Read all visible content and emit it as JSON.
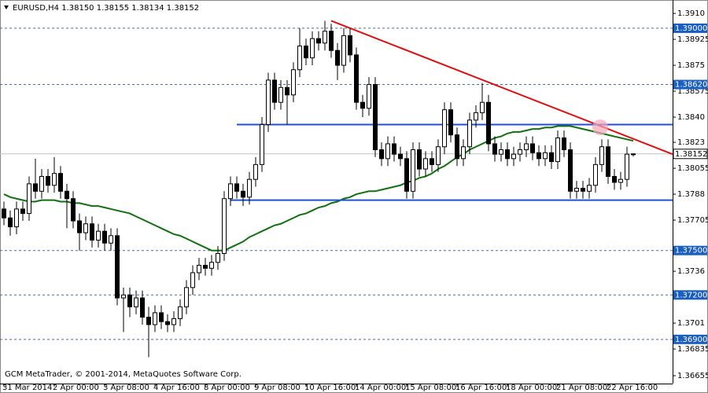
{
  "chart_data": {
    "type": "candlestick",
    "title": "EURUSD,H4  1.38150 1.38155 1.38134 1.38152",
    "footer": "GCM MetaTrader, © 2001-2014, MetaQuotes Software Corp.",
    "up_color": "#ffffff",
    "down_color": "#000000",
    "open": [
      1.3778,
      1.3772,
      1.3766,
      1.3778,
      1.3775,
      1.3795,
      1.379,
      1.38,
      1.3794,
      1.3802,
      1.379,
      1.3785,
      1.377,
      1.3762,
      1.3768,
      1.3757,
      1.3763,
      1.3755,
      1.376,
      1.3718,
      1.372,
      1.3712,
      1.3718,
      1.3705,
      1.37,
      1.3708,
      1.3702,
      1.37,
      1.3704,
      1.3712,
      1.3725,
      1.3735,
      1.374,
      1.3738,
      1.3742,
      1.3748,
      1.3785,
      1.3795,
      1.379,
      1.3786,
      1.3798,
      1.3808,
      1.3835,
      1.3865,
      1.385,
      1.386,
      1.3855,
      1.3872,
      1.3888,
      1.388,
      1.3893,
      1.389,
      1.3898,
      1.3885,
      1.3875,
      1.3895,
      1.3882,
      1.385,
      1.3846,
      1.3862,
      1.3818,
      1.3812,
      1.3822,
      1.3815,
      1.3812,
      1.379,
      1.3818,
      1.3805,
      1.3812,
      1.3808,
      1.382,
      1.3845,
      1.3828,
      1.3812,
      1.382,
      1.3838,
      1.3843,
      1.385,
      1.3822,
      1.3815,
      1.3818,
      1.3812,
      1.3815,
      1.3818,
      1.3822,
      1.3816,
      1.3812,
      1.3816,
      1.381,
      1.3826,
      1.3818,
      1.379,
      1.3792,
      1.379,
      1.3794,
      1.3808,
      1.382,
      1.38,
      1.3796,
      1.3798,
      1.3815
    ],
    "high": [
      1.3783,
      1.3777,
      1.3783,
      1.3783,
      1.38,
      1.3812,
      1.3805,
      1.3805,
      1.3813,
      1.3807,
      1.3795,
      1.379,
      1.3775,
      1.3773,
      1.3773,
      1.3768,
      1.3768,
      1.3765,
      1.3765,
      1.3725,
      1.3725,
      1.3723,
      1.3723,
      1.3712,
      1.3713,
      1.3713,
      1.3707,
      1.3709,
      1.3717,
      1.373,
      1.374,
      1.3745,
      1.3745,
      1.3747,
      1.3753,
      1.379,
      1.38,
      1.38,
      1.3795,
      1.3803,
      1.3813,
      1.384,
      1.387,
      1.387,
      1.3865,
      1.3865,
      1.3877,
      1.39,
      1.3893,
      1.3898,
      1.3898,
      1.3905,
      1.3903,
      1.389,
      1.39,
      1.39,
      1.3887,
      1.3855,
      1.3867,
      1.3867,
      1.3823,
      1.3827,
      1.3827,
      1.382,
      1.3817,
      1.3823,
      1.3823,
      1.3817,
      1.3817,
      1.3825,
      1.385,
      1.385,
      1.3833,
      1.3825,
      1.3843,
      1.3848,
      1.3863,
      1.3855,
      1.3827,
      1.3823,
      1.3823,
      1.382,
      1.3823,
      1.3827,
      1.3827,
      1.3821,
      1.3821,
      1.3821,
      1.3831,
      1.3831,
      1.3823,
      1.3797,
      1.3797,
      1.3799,
      1.3813,
      1.3825,
      1.3825,
      1.3805,
      1.3803,
      1.382,
      1.38155
    ],
    "low": [
      1.3767,
      1.376,
      1.3761,
      1.377,
      1.377,
      1.3785,
      1.3785,
      1.3789,
      1.3789,
      1.3785,
      1.3765,
      1.3765,
      1.375,
      1.3757,
      1.3752,
      1.3752,
      1.375,
      1.375,
      1.3713,
      1.3695,
      1.3705,
      1.3707,
      1.37,
      1.3678,
      1.3695,
      1.3697,
      1.3695,
      1.3695,
      1.3699,
      1.3707,
      1.372,
      1.373,
      1.3733,
      1.3733,
      1.3737,
      1.3743,
      1.378,
      1.3785,
      1.378,
      1.3781,
      1.3793,
      1.3803,
      1.383,
      1.3845,
      1.3845,
      1.3835,
      1.385,
      1.3867,
      1.3875,
      1.3875,
      1.3885,
      1.3885,
      1.388,
      1.3865,
      1.387,
      1.3877,
      1.3845,
      1.384,
      1.3841,
      1.3813,
      1.3807,
      1.3807,
      1.381,
      1.3807,
      1.3785,
      1.3785,
      1.38,
      1.38,
      1.3803,
      1.3803,
      1.3815,
      1.3823,
      1.3807,
      1.3807,
      1.3815,
      1.3833,
      1.3838,
      1.3817,
      1.381,
      1.381,
      1.3807,
      1.3807,
      1.381,
      1.3813,
      1.3811,
      1.3807,
      1.3807,
      1.3805,
      1.3805,
      1.3813,
      1.3785,
      1.3785,
      1.3785,
      1.3785,
      1.3789,
      1.3803,
      1.3795,
      1.3791,
      1.3791,
      1.3793,
      1.38134
    ],
    "close": [
      1.3772,
      1.3766,
      1.3778,
      1.3775,
      1.3795,
      1.379,
      1.38,
      1.3794,
      1.3802,
      1.379,
      1.3785,
      1.377,
      1.3762,
      1.3768,
      1.3757,
      1.3763,
      1.3755,
      1.376,
      1.3718,
      1.372,
      1.3712,
      1.3718,
      1.3705,
      1.37,
      1.3708,
      1.3702,
      1.37,
      1.3704,
      1.3712,
      1.3725,
      1.3735,
      1.374,
      1.3738,
      1.3742,
      1.3748,
      1.3785,
      1.3795,
      1.379,
      1.3786,
      1.3798,
      1.3808,
      1.3835,
      1.3865,
      1.385,
      1.386,
      1.3855,
      1.3872,
      1.3888,
      1.388,
      1.3893,
      1.389,
      1.3898,
      1.3885,
      1.3875,
      1.3895,
      1.3882,
      1.385,
      1.3846,
      1.3862,
      1.3818,
      1.3812,
      1.3822,
      1.3815,
      1.3812,
      1.379,
      1.3818,
      1.3805,
      1.3812,
      1.3808,
      1.382,
      1.3845,
      1.3828,
      1.3812,
      1.382,
      1.3838,
      1.3843,
      1.385,
      1.3822,
      1.3815,
      1.3818,
      1.3812,
      1.3815,
      1.3818,
      1.3822,
      1.3816,
      1.3812,
      1.3816,
      1.381,
      1.3826,
      1.3818,
      1.379,
      1.3792,
      1.379,
      1.3794,
      1.3808,
      1.382,
      1.38,
      1.3796,
      1.3798,
      1.3815,
      1.38152
    ],
    "ma": {
      "color": "#107010",
      "values": [
        1.3788,
        1.3786,
        1.3785,
        1.3784,
        1.3783,
        1.3783,
        1.3784,
        1.3784,
        1.3784,
        1.3783,
        1.3783,
        1.3782,
        1.3782,
        1.3781,
        1.378,
        1.378,
        1.3779,
        1.3778,
        1.3777,
        1.3776,
        1.3775,
        1.3773,
        1.3771,
        1.3769,
        1.3767,
        1.3765,
        1.3763,
        1.3761,
        1.376,
        1.3758,
        1.3756,
        1.3754,
        1.3752,
        1.375,
        1.375,
        1.375,
        1.3752,
        1.3754,
        1.3756,
        1.3759,
        1.3761,
        1.3763,
        1.3765,
        1.3767,
        1.3768,
        1.377,
        1.3772,
        1.3774,
        1.3775,
        1.3777,
        1.3779,
        1.378,
        1.3782,
        1.3783,
        1.3785,
        1.3786,
        1.3788,
        1.3789,
        1.379,
        1.379,
        1.3791,
        1.3792,
        1.3793,
        1.3794,
        1.3796,
        1.3797,
        1.3799,
        1.38,
        1.3802,
        1.3805,
        1.3807,
        1.381,
        1.3813,
        1.3815,
        1.3818,
        1.382,
        1.3822,
        1.3824,
        1.3826,
        1.3827,
        1.3829,
        1.383,
        1.383,
        1.3831,
        1.3832,
        1.3832,
        1.3833,
        1.3833,
        1.3834,
        1.3834,
        1.3834,
        1.3833,
        1.3832,
        1.3831,
        1.383,
        1.3829,
        1.3828,
        1.3827,
        1.3826,
        1.3825,
        1.3824
      ]
    },
    "lines": [
      {
        "color": "#e01010",
        "x": [
          52,
          106.25
        ],
        "y": [
          1.3905,
          1.3815
        ]
      },
      {
        "color": "#2050d0",
        "x": [
          37,
          106.25
        ],
        "y": [
          1.3835,
          1.3835
        ]
      },
      {
        "color": "#2050d0",
        "x": [
          36,
          106.25
        ],
        "y": [
          1.3784,
          1.3784
        ]
      }
    ],
    "levels": [
      {
        "value": 1.39,
        "label": "1.39000"
      },
      {
        "value": 1.3862,
        "label": "1.38620"
      },
      {
        "value": 1.375,
        "label": "1.37500"
      },
      {
        "value": 1.372,
        "label": "1.37200"
      },
      {
        "value": 1.369,
        "label": "1.36900"
      }
    ],
    "current": {
      "value": 1.38152,
      "label": "1.38152"
    },
    "xlim": [
      -0.625,
      106.25
    ],
    "xticks": [
      {
        "value": 0,
        "label": "31 Mar 2014"
      },
      {
        "value": 8,
        "label": "2 Apr 00:00"
      },
      {
        "value": 16,
        "label": "3 Apr 08:00"
      },
      {
        "value": 24,
        "label": "4 Apr 16:00"
      },
      {
        "value": 32,
        "label": "8 Apr 00:00"
      },
      {
        "value": 40,
        "label": "9 Apr 08:00"
      },
      {
        "value": 48,
        "label": "10 Apr 16:00"
      },
      {
        "value": 56,
        "label": "14 Apr 00:00"
      },
      {
        "value": 64,
        "label": "15 Apr 08:00"
      },
      {
        "value": 72,
        "label": "16 Apr 16:00"
      },
      {
        "value": 80,
        "label": "18 Apr 00:00"
      },
      {
        "value": 88,
        "label": "21 Apr 08:00"
      },
      {
        "value": 96,
        "label": "22 Apr 16:00"
      }
    ],
    "ylim": [
      1.36602,
      1.39164
    ],
    "yticks": [
      {
        "value": 1.391,
        "label": "1.3910"
      },
      {
        "value": 1.38925,
        "label": "1.38925"
      },
      {
        "value": 1.3875,
        "label": "1.3875"
      },
      {
        "value": 1.38575,
        "label": "1.38575"
      },
      {
        "value": 1.384,
        "label": "1.3840"
      },
      {
        "value": 1.3823,
        "label": "1.3823"
      },
      {
        "value": 1.38055,
        "label": "1.38055"
      },
      {
        "value": 1.3788,
        "label": "1.3788"
      },
      {
        "value": 1.37705,
        "label": "1.37705"
      },
      {
        "value": 1.3736,
        "label": "1.3736"
      },
      {
        "value": 1.3701,
        "label": "1.3701"
      },
      {
        "value": 1.36835,
        "label": "1.36835"
      },
      {
        "value": 1.36655,
        "label": "1.36655"
      }
    ]
  }
}
